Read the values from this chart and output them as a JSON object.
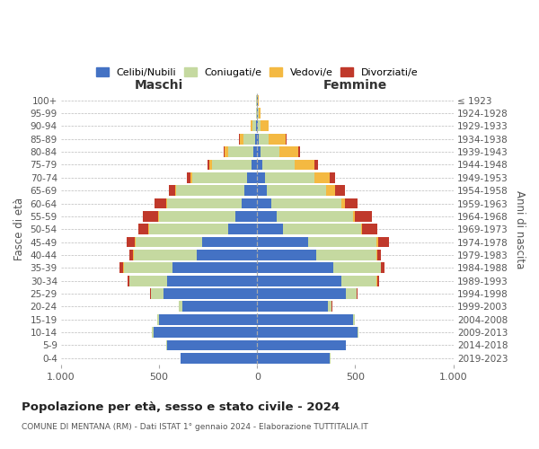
{
  "age_groups": [
    "0-4",
    "5-9",
    "10-14",
    "15-19",
    "20-24",
    "25-29",
    "30-34",
    "35-39",
    "40-44",
    "45-49",
    "50-54",
    "55-59",
    "60-64",
    "65-69",
    "70-74",
    "75-79",
    "80-84",
    "85-89",
    "90-94",
    "95-99",
    "100+"
  ],
  "birth_years": [
    "2019-2023",
    "2014-2018",
    "2009-2013",
    "2004-2008",
    "1999-2003",
    "1994-1998",
    "1989-1993",
    "1984-1988",
    "1979-1983",
    "1974-1978",
    "1969-1973",
    "1964-1968",
    "1959-1963",
    "1954-1958",
    "1949-1953",
    "1944-1948",
    "1939-1943",
    "1934-1938",
    "1929-1933",
    "1924-1928",
    "≤ 1923"
  ],
  "males": {
    "celibi": [
      390,
      460,
      530,
      500,
      380,
      480,
      460,
      430,
      310,
      280,
      150,
      110,
      80,
      65,
      50,
      30,
      20,
      10,
      5,
      2,
      2
    ],
    "coniugati": [
      2,
      5,
      5,
      10,
      20,
      60,
      190,
      250,
      320,
      340,
      400,
      390,
      380,
      350,
      280,
      200,
      130,
      60,
      20,
      4,
      2
    ],
    "vedovi": [
      0,
      0,
      0,
      0,
      0,
      2,
      0,
      2,
      2,
      5,
      5,
      5,
      5,
      4,
      10,
      12,
      18,
      18,
      8,
      2,
      0
    ],
    "divorziati": [
      0,
      0,
      0,
      0,
      2,
      5,
      10,
      20,
      20,
      40,
      50,
      80,
      60,
      30,
      20,
      12,
      5,
      4,
      0,
      0,
      0
    ]
  },
  "females": {
    "nubili": [
      370,
      450,
      510,
      490,
      360,
      450,
      430,
      390,
      300,
      260,
      130,
      100,
      70,
      50,
      40,
      25,
      15,
      10,
      5,
      2,
      2
    ],
    "coniugate": [
      2,
      3,
      5,
      8,
      20,
      55,
      180,
      240,
      310,
      350,
      400,
      390,
      360,
      300,
      250,
      168,
      98,
      48,
      14,
      5,
      2
    ],
    "vedove": [
      0,
      0,
      0,
      0,
      0,
      2,
      2,
      2,
      2,
      5,
      5,
      8,
      18,
      48,
      78,
      98,
      98,
      88,
      38,
      8,
      2
    ],
    "divorziate": [
      0,
      0,
      0,
      0,
      2,
      4,
      8,
      18,
      18,
      58,
      78,
      88,
      63,
      48,
      28,
      18,
      8,
      4,
      2,
      0,
      0
    ]
  },
  "colors": {
    "celibi": "#4472c4",
    "coniugati": "#c5d9a0",
    "vedovi": "#f4b942",
    "divorziati": "#c0392b"
  },
  "title": "Popolazione per età, sesso e stato civile - 2024",
  "subtitle": "COMUNE DI MENTANA (RM) - Dati ISTAT 1° gennaio 2024 - Elaborazione TUTTITALIA.IT",
  "label_maschi": "Maschi",
  "label_femmine": "Femmine",
  "ylabel_left": "Fasce di età",
  "ylabel_right": "Anni di nascita",
  "xlim": 1000,
  "legend_labels": [
    "Celibi/Nubili",
    "Coniugati/e",
    "Vedovi/e",
    "Divorziati/e"
  ],
  "bg_color": "#ffffff",
  "grid_color": "#bbbbbb"
}
